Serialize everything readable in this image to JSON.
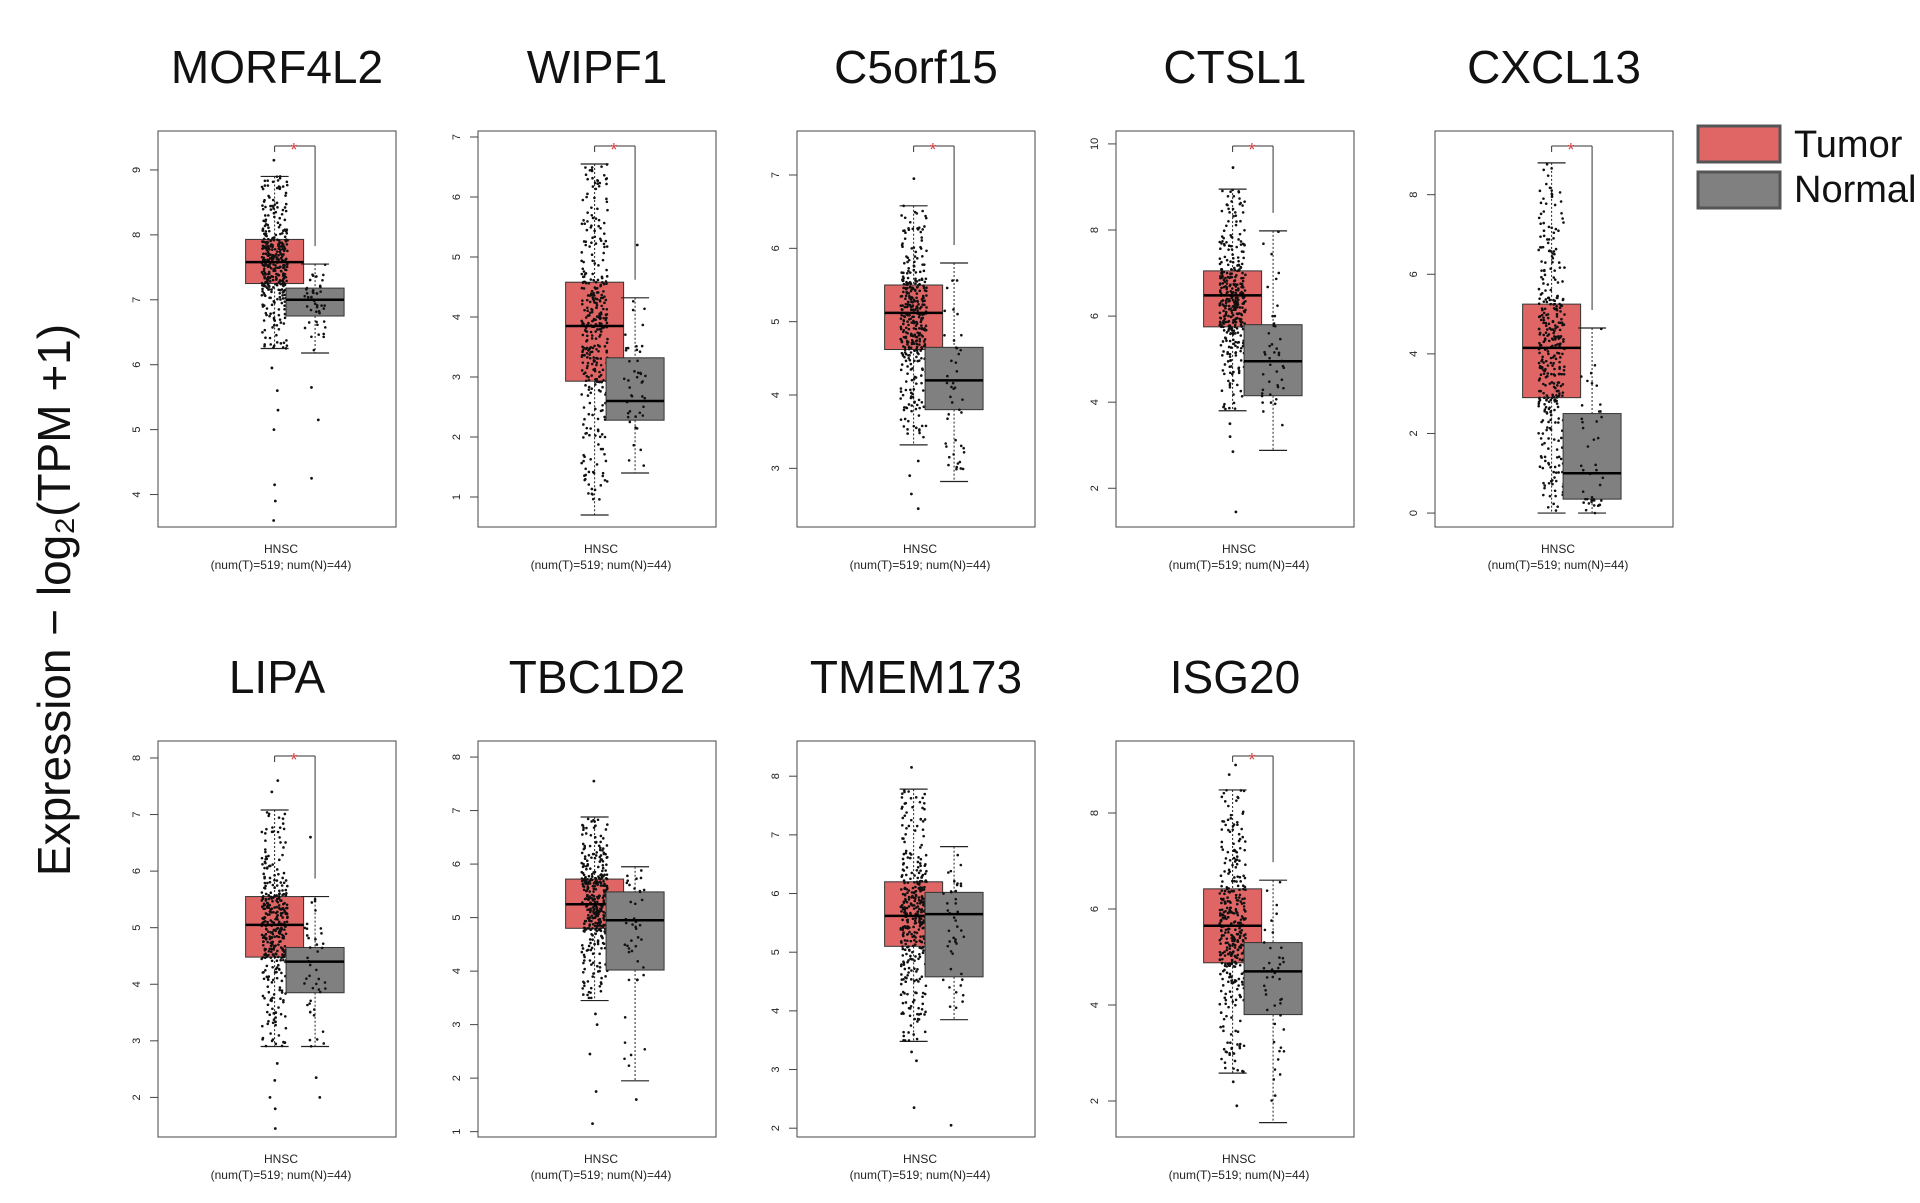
{
  "figure": {
    "ylabel": "Expression − log₂(TPM +1)",
    "legend": [
      {
        "label": "Tumor",
        "color": "#e06666"
      },
      {
        "label": "Normal",
        "color": "#808080"
      }
    ],
    "colors": {
      "tumor": "#e06666",
      "normal": "#808080",
      "star": "#d23b3b"
    }
  },
  "chart_data": [
    {
      "type": "box",
      "title": "MORF4L2",
      "xlabel": "HNSC",
      "xsublabel": "(num(T)=519; num(N)=44)",
      "ylim": [
        3.5,
        9.6
      ],
      "yticks": [
        4,
        5,
        6,
        7,
        8,
        9
      ],
      "significant": true,
      "series": [
        {
          "name": "Tumor",
          "min": 6.25,
          "q1": 7.25,
          "median": 7.58,
          "q3": 7.93,
          "max": 8.9,
          "outliers": [
            5.0,
            5.3,
            5.6,
            5.95,
            4.15,
            3.9,
            3.6,
            9.15
          ]
        },
        {
          "name": "Normal",
          "min": 6.18,
          "q1": 6.75,
          "median": 7.0,
          "q3": 7.18,
          "max": 7.55,
          "outliers": [
            5.65,
            5.15,
            4.25
          ]
        }
      ]
    },
    {
      "type": "box",
      "title": "WIPF1",
      "xlabel": "HNSC",
      "xsublabel": "(num(T)=519; num(N)=44)",
      "ylim": [
        0.5,
        7.1
      ],
      "yticks": [
        1,
        2,
        3,
        4,
        5,
        6,
        7
      ],
      "significant": true,
      "series": [
        {
          "name": "Tumor",
          "min": 0.7,
          "q1": 2.93,
          "median": 3.85,
          "q3": 4.58,
          "max": 6.55,
          "outliers": []
        },
        {
          "name": "Normal",
          "min": 1.4,
          "q1": 2.28,
          "median": 2.6,
          "q3": 3.32,
          "max": 4.32,
          "outliers": [
            5.2
          ]
        }
      ]
    },
    {
      "type": "box",
      "title": "C5orf15",
      "xlabel": "HNSC",
      "xsublabel": "(num(T)=519; num(N)=44)",
      "ylim": [
        2.2,
        7.6
      ],
      "yticks": [
        3,
        4,
        5,
        6,
        7
      ],
      "significant": true,
      "series": [
        {
          "name": "Tumor",
          "min": 3.32,
          "q1": 4.62,
          "median": 5.12,
          "q3": 5.5,
          "max": 6.58,
          "outliers": [
            3.1,
            2.9,
            2.65,
            2.45,
            6.95
          ]
        },
        {
          "name": "Normal",
          "min": 2.82,
          "q1": 3.8,
          "median": 4.2,
          "q3": 4.65,
          "max": 5.8,
          "outliers": []
        }
      ]
    },
    {
      "type": "box",
      "title": "CTSL1",
      "xlabel": "HNSC",
      "xsublabel": "(num(T)=519; num(N)=44)",
      "ylim": [
        1.1,
        10.3
      ],
      "yticks": [
        2,
        4,
        6,
        8,
        10
      ],
      "significant": true,
      "series": [
        {
          "name": "Tumor",
          "min": 3.8,
          "q1": 5.75,
          "median": 6.48,
          "q3": 7.05,
          "max": 8.95,
          "outliers": [
            3.5,
            3.2,
            2.85,
            1.45,
            9.45
          ]
        },
        {
          "name": "Normal",
          "min": 2.88,
          "q1": 4.15,
          "median": 4.95,
          "q3": 5.8,
          "max": 7.98,
          "outliers": []
        }
      ]
    },
    {
      "type": "box",
      "title": "CXCL13",
      "xlabel": "HNSC",
      "xsublabel": "(num(T)=519; num(N)=44)",
      "ylim": [
        -0.35,
        9.6
      ],
      "yticks": [
        0,
        2,
        4,
        6,
        8
      ],
      "significant": true,
      "series": [
        {
          "name": "Tumor",
          "min": 0.0,
          "q1": 2.9,
          "median": 4.15,
          "q3": 5.25,
          "max": 8.8,
          "outliers": []
        },
        {
          "name": "Normal",
          "min": 0.0,
          "q1": 0.35,
          "median": 1.0,
          "q3": 2.5,
          "max": 4.65,
          "outliers": []
        }
      ]
    },
    {
      "type": "box",
      "title": "LIPA",
      "xlabel": "HNSC",
      "xsublabel": "(num(T)=519; num(N)=44)",
      "ylim": [
        1.3,
        8.3
      ],
      "yticks": [
        2,
        3,
        4,
        5,
        6,
        7,
        8
      ],
      "significant": true,
      "series": [
        {
          "name": "Tumor",
          "min": 2.9,
          "q1": 4.48,
          "median": 5.05,
          "q3": 5.55,
          "max": 7.08,
          "outliers": [
            2.6,
            2.3,
            2.0,
            1.8,
            1.45,
            7.4,
            7.6
          ]
        },
        {
          "name": "Normal",
          "min": 2.9,
          "q1": 3.85,
          "median": 4.4,
          "q3": 4.65,
          "max": 5.55,
          "outliers": [
            6.6,
            2.35,
            2.0
          ]
        }
      ]
    },
    {
      "type": "box",
      "title": "TBC1D2",
      "xlabel": "HNSC",
      "xsublabel": "(num(T)=519; num(N)=44)",
      "ylim": [
        0.9,
        8.3
      ],
      "yticks": [
        1,
        2,
        3,
        4,
        5,
        6,
        7,
        8
      ],
      "significant": false,
      "series": [
        {
          "name": "Tumor",
          "min": 3.45,
          "q1": 4.8,
          "median": 5.25,
          "q3": 5.72,
          "max": 6.88,
          "outliers": [
            2.45,
            1.75,
            1.15,
            7.55,
            3.2,
            3.0
          ]
        },
        {
          "name": "Normal",
          "min": 1.95,
          "q1": 4.02,
          "median": 4.95,
          "q3": 5.48,
          "max": 5.95,
          "outliers": [
            1.6
          ]
        }
      ]
    },
    {
      "type": "box",
      "title": "TMEM173",
      "xlabel": "HNSC",
      "xsublabel": "(num(T)=519; num(N)=44)",
      "ylim": [
        1.85,
        8.6
      ],
      "yticks": [
        2,
        3,
        4,
        5,
        6,
        7,
        8
      ],
      "significant": false,
      "series": [
        {
          "name": "Tumor",
          "min": 3.48,
          "q1": 5.1,
          "median": 5.62,
          "q3": 6.2,
          "max": 7.78,
          "outliers": [
            3.3,
            3.15,
            2.35,
            8.15
          ]
        },
        {
          "name": "Normal",
          "min": 3.85,
          "q1": 4.58,
          "median": 5.65,
          "q3": 6.02,
          "max": 6.8,
          "outliers": [
            2.05
          ]
        }
      ]
    },
    {
      "type": "box",
      "title": "ISG20",
      "xlabel": "HNSC",
      "xsublabel": "(num(T)=519; num(N)=44)",
      "ylim": [
        1.25,
        9.5
      ],
      "yticks": [
        2,
        4,
        6,
        8
      ],
      "significant": true,
      "series": [
        {
          "name": "Tumor",
          "min": 2.58,
          "q1": 4.88,
          "median": 5.65,
          "q3": 6.42,
          "max": 8.48,
          "outliers": [
            2.4,
            1.9,
            9.0,
            8.8
          ]
        },
        {
          "name": "Normal",
          "min": 1.55,
          "q1": 3.8,
          "median": 4.7,
          "q3": 5.3,
          "max": 6.6,
          "outliers": []
        }
      ]
    }
  ]
}
